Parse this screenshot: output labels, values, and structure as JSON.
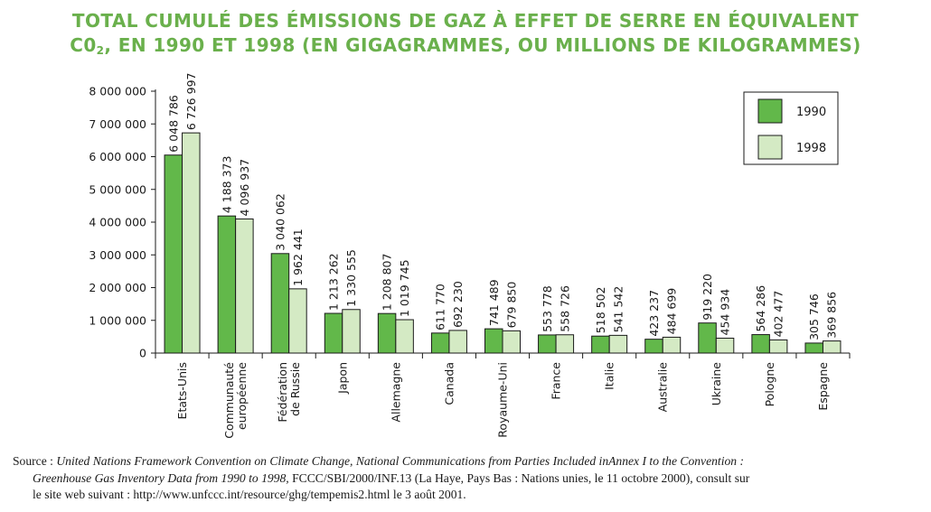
{
  "title": {
    "line1": "TOTAL CUMULÉ DES ÉMISSIONS DE GAZ À EFFET DE SERRE EN ÉQUIVALENT",
    "line2_pre": "C0",
    "line2_sub": "2",
    "line2_post": ", EN 1990 ET 1998 (EN GIGAGRAMMES, OU MILLIONS DE KILOGRAMMES)"
  },
  "colors": {
    "title": "#6ab04c",
    "s1990": "#62b84a",
    "s1998": "#d4eac4",
    "stroke": "#1a1a1a"
  },
  "chart_data": {
    "type": "bar",
    "ylim": [
      0,
      8000000
    ],
    "yticks": [
      0,
      1000000,
      2000000,
      3000000,
      4000000,
      5000000,
      6000000,
      7000000,
      8000000
    ],
    "ytick_labels": [
      "0",
      "1 000 000",
      "2 000 000",
      "3 000 000",
      "4 000 000",
      "5 000 000",
      "6 000 000",
      "7 000 000",
      "8 000 000"
    ],
    "legend_position": "top-right",
    "categories": [
      [
        "Etats-Unis"
      ],
      [
        "Communauté",
        "européenne"
      ],
      [
        "Fédération",
        "de Russie"
      ],
      [
        "Japon"
      ],
      [
        "Allemagne"
      ],
      [
        "Canada"
      ],
      [
        "Royaume-Uni"
      ],
      [
        "France"
      ],
      [
        "Italie"
      ],
      [
        "Australie"
      ],
      [
        "Ukraine"
      ],
      [
        "Pologne"
      ],
      [
        "Espagne"
      ]
    ],
    "series": [
      {
        "name": "1990",
        "values": [
          6048786,
          4188373,
          3040062,
          1213262,
          1208807,
          611770,
          741489,
          553778,
          518502,
          423237,
          919220,
          564286,
          305746
        ],
        "labels": [
          "6 048 786",
          "4 188 373",
          "3 040 062",
          "1 213 262",
          "1 208 807",
          "611 770",
          "741 489",
          "553 778",
          "518 502",
          "423 237",
          "919 220",
          "564 286",
          "305 746"
        ]
      },
      {
        "name": "1998",
        "values": [
          6726997,
          4096937,
          1962441,
          1330555,
          1019745,
          692230,
          679850,
          558726,
          541542,
          484699,
          454934,
          402477,
          369856
        ],
        "labels": [
          "6 726 997",
          "4 096 937",
          "1 962 441",
          "1 330 555",
          "1 019 745",
          "692 230",
          "679 850",
          "558 726",
          "541 542",
          "484 699",
          "454 934",
          "402 477",
          "369 856"
        ]
      }
    ]
  },
  "source": {
    "prefix": "Source : ",
    "italic1": "United Nations Framework Convention on Climate Change, National Communications from Parties Included inAnnex I to the Convention :",
    "italic2": "Greenhouse Gas Inventory Data from 1990 to 1998,",
    "rest2": " FCCC/SBI/2000/INF.13 (La Haye, Pays Bas : Nations unies, le 11 octobre 2000), consult  sur",
    "line3": "le site web suivant :  http://www.unfccc.int/resource/ghg/tempemis2.html le 3 août 2001."
  }
}
